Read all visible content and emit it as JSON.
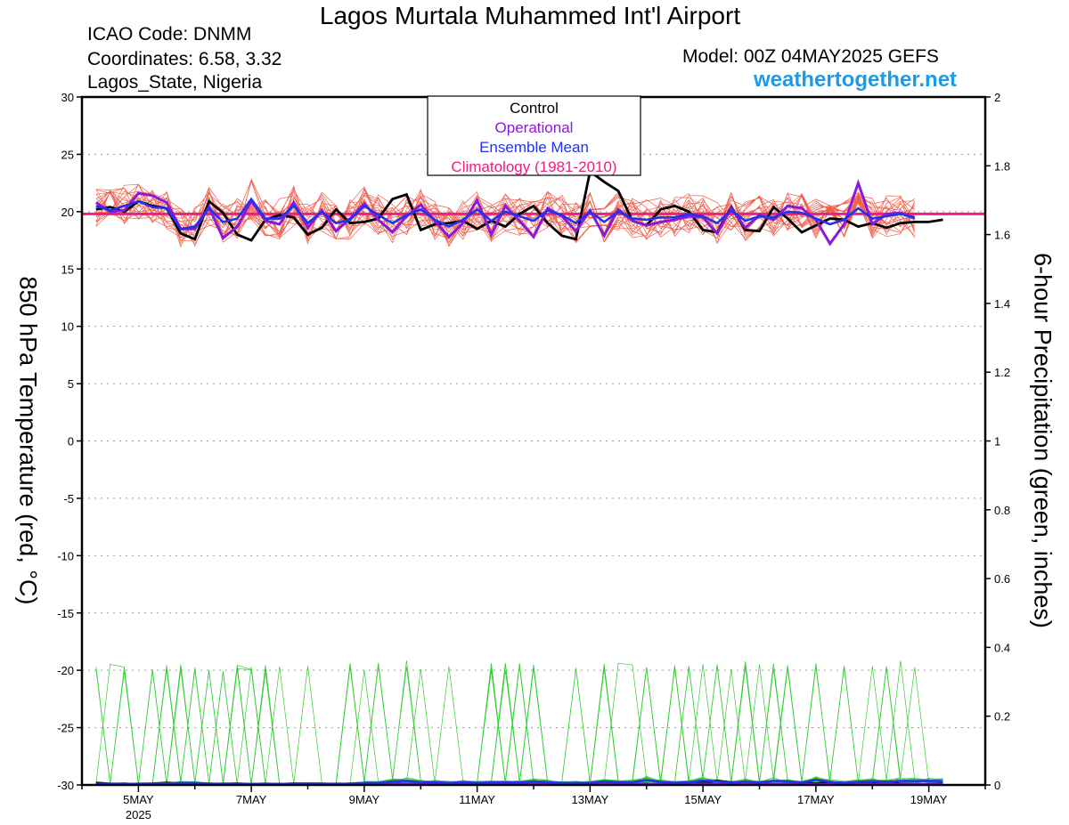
{
  "header": {
    "title": "Lagos Murtala Muhammed Int'l Airport",
    "icao": "ICAO Code: DNMM",
    "coordinates": "Coordinates: 6.58, 3.32",
    "location": "Lagos_State, Nigeria",
    "model": "Model: 00Z 04MAY2025 GEFS",
    "brand": "weathertogether.net"
  },
  "colors": {
    "control": "#000000",
    "operational": "#8a1ad6",
    "ensemble_mean": "#2233ee",
    "climatology": "#ee1f80",
    "members_temp": "#f25c4a",
    "members_precip": "#33cc33",
    "brand": "#1e9be6"
  },
  "chart_data": {
    "type": "line",
    "title": "Lagos Murtala Muhammed Int'l Airport",
    "xlabel": "",
    "ylabel": "850 hPa Temperature (red, °C)",
    "ylabel_right": "6-hour Precipitation (green, inches)",
    "ylim": [
      -30,
      30
    ],
    "ylim_right": [
      0,
      2
    ],
    "xlim": [
      "2025-05-04",
      "2025-05-20"
    ],
    "x_ticks": [
      "5MAY",
      "7MAY",
      "9MAY",
      "11MAY",
      "13MAY",
      "15MAY",
      "17MAY",
      "19MAY"
    ],
    "x_tick_year": "2025",
    "y_ticks": [
      30,
      25,
      20,
      15,
      10,
      5,
      0,
      -5,
      -10,
      -15,
      -20,
      -25,
      -30
    ],
    "y_ticks_right": [
      2,
      1.8,
      1.6,
      1.4,
      1.2,
      1,
      0.8,
      0.6,
      0.4,
      0.2,
      0
    ],
    "grid": "horizontal dotted",
    "legend": {
      "placement": "top-center",
      "entries": [
        "Control",
        "Operational",
        "Ensemble Mean",
        "Climatology (1981-2010)"
      ]
    },
    "x_step": "6-hourly, starting 2025-05-04 06Z",
    "climatology": 19.8,
    "temperature_series": [
      {
        "name": "Control",
        "values": [
          20.2,
          20.4,
          20.0,
          20.9,
          20.5,
          20.3,
          18.1,
          17.6,
          20.9,
          19.9,
          18.0,
          17.5,
          19.3,
          19.7,
          19.5,
          18.0,
          18.6,
          20.2,
          19.0,
          19.1,
          19.4,
          21.1,
          21.5,
          18.4,
          18.9,
          19.0,
          19.2,
          18.5,
          19.2,
          18.7,
          19.8,
          20.5,
          19.0,
          17.9,
          17.6,
          23.5,
          22.6,
          21.8,
          19.2,
          18.8,
          20.2,
          20.5,
          20.0,
          18.4,
          18.2,
          20.4,
          18.4,
          18.3,
          20.4,
          19.4,
          18.2,
          18.8,
          19.4,
          19.3,
          18.7,
          19.0,
          18.6,
          19.0,
          19.1,
          19.1,
          19.3
        ]
      },
      {
        "name": "Operational",
        "values": [
          20.8,
          20.0,
          20.1,
          21.6,
          21.4,
          20.8,
          18.5,
          18.5,
          20.4,
          17.7,
          18.7,
          20.9,
          19.2,
          18.9,
          20.8,
          18.6,
          20.1,
          18.3,
          19.4,
          20.7,
          19.3,
          18.2,
          19.6,
          20.6,
          19.2,
          17.8,
          19.0,
          21.0,
          18.0,
          20.5,
          19.2,
          17.8,
          20.3,
          19.6,
          18.3,
          20.1,
          17.9,
          20.2,
          19.2,
          18.8,
          19.1,
          19.3,
          19.6,
          19.5,
          18.1,
          20.3,
          18.6,
          19.7,
          19.3,
          20.5,
          20.3,
          19.3,
          17.2,
          18.9,
          22.5,
          18.9,
          19.8,
          19.9,
          19.4
        ]
      },
      {
        "name": "Ensemble Mean",
        "values": [
          20.5,
          20.1,
          20.5,
          20.9,
          20.4,
          20.3,
          18.5,
          18.7,
          20.3,
          19.1,
          19.4,
          21.1,
          19.4,
          19.4,
          20.5,
          19.0,
          20.0,
          19.0,
          19.3,
          20.5,
          19.7,
          19.0,
          19.7,
          20.2,
          19.3,
          18.7,
          19.3,
          20.2,
          19.2,
          20.0,
          19.6,
          19.2,
          20.1,
          19.7,
          19.0,
          20.0,
          19.1,
          20.0,
          19.4,
          19.3,
          19.5,
          19.5,
          19.8,
          19.6,
          19.0,
          20.1,
          19.2,
          19.6,
          19.5,
          20.0,
          19.9,
          19.4,
          18.9,
          19.3,
          20.3,
          19.4,
          19.6,
          19.8,
          19.5
        ]
      }
    ],
    "precipitation_series": [
      {
        "name": "Control",
        "values": [
          0.006,
          0.003,
          0.002,
          0.003,
          0.004,
          0.006,
          0.004,
          0.002,
          0.002,
          0.003,
          0.004,
          0.002,
          0.003,
          0.002,
          0.004,
          0.003,
          0.002,
          0.002,
          0.003,
          0.005,
          0.004,
          0.005,
          0.002,
          0.004,
          0.002,
          0.002,
          0.003,
          0.002,
          0.007,
          0.003,
          0.002,
          0.006,
          0.002,
          0.002,
          0.003,
          0.002,
          0.002,
          0.004,
          0.002,
          0.003,
          0.002,
          0.003,
          0.003,
          0.007,
          0.012,
          0.007,
          0.002,
          0.003,
          0.002,
          0.002,
          0.006,
          0.004,
          0.008,
          0.003,
          0.003,
          0.004,
          0.007,
          0.003,
          0.002,
          0.002,
          0.004
        ]
      },
      {
        "name": "Operational",
        "values": [
          0.002,
          0.003,
          0.002,
          0.002,
          0.003,
          0.004,
          0.003,
          0.002,
          0.002,
          0.003,
          0.002,
          0.002,
          0.003,
          0.002,
          0.003,
          0.002,
          0.002,
          0.003,
          0.002,
          0.002,
          0.003,
          0.004,
          0.002,
          0.003,
          0.002,
          0.002,
          0.002,
          0.002,
          0.003,
          0.002,
          0.002,
          0.003,
          0.002,
          0.002,
          0.002,
          0.003,
          0.002,
          0.002,
          0.003,
          0.002,
          0.002,
          0.002,
          0.002,
          0.003,
          0.002,
          0.002,
          0.003,
          0.002,
          0.002,
          0.003,
          0.002,
          0.002,
          0.002,
          0.003,
          0.002,
          0.002,
          0.003,
          0.002,
          0.002,
          0.002,
          0.002
        ]
      },
      {
        "name": "Ensemble Mean",
        "values": [
          0.003,
          0.003,
          0.004,
          0.002,
          0.003,
          0.003,
          0.006,
          0.006,
          0.004,
          0.003,
          0.003,
          0.002,
          0.003,
          0.003,
          0.003,
          0.004,
          0.004,
          0.003,
          0.004,
          0.006,
          0.006,
          0.01,
          0.012,
          0.008,
          0.008,
          0.006,
          0.008,
          0.006,
          0.007,
          0.007,
          0.007,
          0.01,
          0.008,
          0.006,
          0.006,
          0.006,
          0.01,
          0.008,
          0.008,
          0.014,
          0.009,
          0.006,
          0.008,
          0.013,
          0.01,
          0.006,
          0.01,
          0.007,
          0.012,
          0.01,
          0.007,
          0.015,
          0.009,
          0.006,
          0.009,
          0.011,
          0.009,
          0.012,
          0.011,
          0.012,
          0.011
        ]
      }
    ]
  }
}
